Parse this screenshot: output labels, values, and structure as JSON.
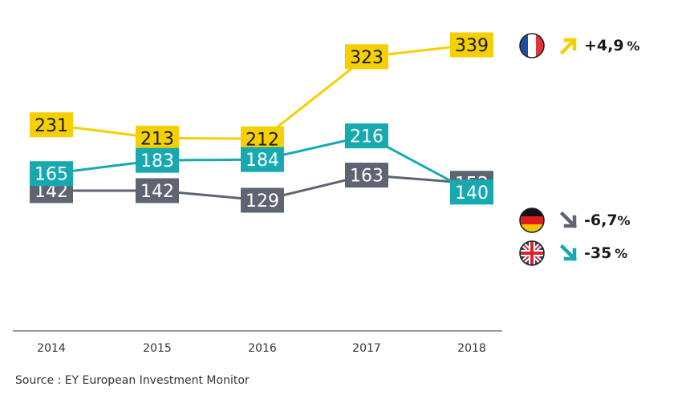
{
  "chart_data": {
    "type": "line",
    "x": [
      "2014",
      "2015",
      "2016",
      "2017",
      "2018"
    ],
    "ylim": [
      0,
      360
    ],
    "xlabel": "",
    "ylabel": "",
    "series": [
      {
        "name": "France",
        "color": "#F5D000",
        "values": [
          231,
          213,
          212,
          323,
          339
        ]
      },
      {
        "name": "Germany",
        "color": "#5E6472",
        "values": [
          142,
          142,
          129,
          163,
          152
        ]
      },
      {
        "name": "UK",
        "color": "#17A9B0",
        "values": [
          165,
          183,
          184,
          216,
          140
        ]
      }
    ],
    "source": "Source : EY European Investment Monitor"
  },
  "legend": [
    {
      "country": "France",
      "flag": "france-flag-icon",
      "arrow": "arrow-up-right-icon",
      "color": "#F5D000",
      "change_value": "+4,9",
      "change_unit": "%"
    },
    {
      "country": "Germany",
      "flag": "germany-flag-icon",
      "arrow": "arrow-down-right-icon",
      "color": "#5E6472",
      "change_value": "-6,7",
      "change_unit": "%"
    },
    {
      "country": "UK",
      "flag": "uk-flag-icon",
      "arrow": "arrow-down-right-icon",
      "color": "#17A9B0",
      "change_value": "-35",
      "change_unit": "%"
    }
  ]
}
